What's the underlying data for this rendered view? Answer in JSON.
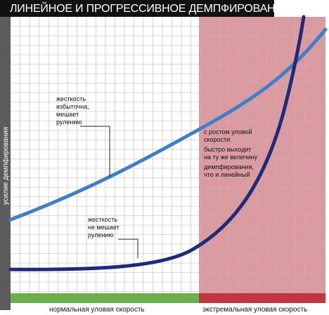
{
  "title": "ЛИНЕЙНОЕ И ПРОГРЕССИВНОЕ ДЕМПФИРОВАНИЕ",
  "y_axis_label": "усилие демпфирования",
  "x_zones": {
    "normal": "нормальная уловая скорость",
    "extreme": "экстремальная уловая скорость"
  },
  "annotations": {
    "linear_line1": "жесткость",
    "linear_line2": "избыточна,",
    "linear_line3": "мешает",
    "linear_line4": "рулению",
    "progressive_line1": "жесткость",
    "progressive_line2": "не мешает",
    "progressive_line3": "рулению",
    "crossover_line1": "с ростом уловой",
    "crossover_line2": "скорости",
    "crossover_line3": "быстро выходит",
    "crossover_line4": "на ту же величину",
    "crossover_line5": "демпфирования,",
    "crossover_line6": "что и линейный"
  },
  "colors": {
    "linear": "#3f7fc6",
    "progressive": "#1f2a78",
    "extreme_zone": "#dc9aa0",
    "normal_bar": "#6ab04c",
    "extreme_bar": "#c0353e",
    "y_axis_bar": "#5c5c5c",
    "grid": "#b8b8b8"
  }
}
